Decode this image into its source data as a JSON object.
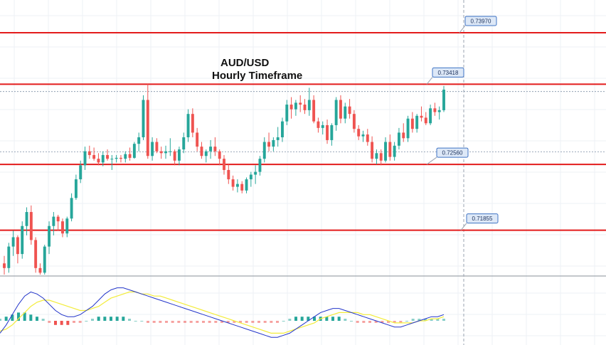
{
  "chart_data": {
    "type": "candlestick",
    "title": "AUD/USD",
    "subtitle": "Hourly Timeframe",
    "y_range": [
      0.7138,
      0.7432
    ],
    "levels": [
      {
        "label": "0.73970",
        "value": 0.7397
      },
      {
        "label": "0.73418",
        "value": 0.73418
      },
      {
        "label": "0.72560",
        "value": 0.7256
      },
      {
        "label": "0.71855",
        "value": 0.71855
      }
    ],
    "colors": {
      "bull": "#26a69a",
      "bear": "#ef5350",
      "level_line": "#e31b1b",
      "label_fill": "#dde8f7",
      "label_border": "#3f73c4",
      "macd_line": "#2234c9",
      "signal_line": "#f3ec3a",
      "histogram_positive": "#26a69a",
      "histogram_negative": "#ef5350"
    },
    "candles": [
      [
        0.715,
        0.7158,
        0.7138,
        0.7145
      ],
      [
        0.7145,
        0.7172,
        0.714,
        0.7168
      ],
      [
        0.7168,
        0.7185,
        0.7158,
        0.7178
      ],
      [
        0.7178,
        0.718,
        0.715,
        0.716
      ],
      [
        0.716,
        0.7195,
        0.7155,
        0.719
      ],
      [
        0.719,
        0.721,
        0.718,
        0.7205
      ],
      [
        0.7205,
        0.7212,
        0.717,
        0.7175
      ],
      [
        0.7175,
        0.7178,
        0.714,
        0.7145
      ],
      [
        0.7145,
        0.715,
        0.7138,
        0.714
      ],
      [
        0.714,
        0.717,
        0.7138,
        0.7168
      ],
      [
        0.7168,
        0.7195,
        0.716,
        0.719
      ],
      [
        0.719,
        0.7205,
        0.718,
        0.72
      ],
      [
        0.72,
        0.7202,
        0.7185,
        0.7195
      ],
      [
        0.7195,
        0.7198,
        0.7178,
        0.7182
      ],
      [
        0.7182,
        0.72,
        0.7178,
        0.7198
      ],
      [
        0.7198,
        0.7225,
        0.7195,
        0.722
      ],
      [
        0.722,
        0.7245,
        0.7218,
        0.724
      ],
      [
        0.724,
        0.726,
        0.7236,
        0.7255
      ],
      [
        0.7255,
        0.7275,
        0.725,
        0.727
      ],
      [
        0.727,
        0.7276,
        0.7262,
        0.7266
      ],
      [
        0.7266,
        0.7274,
        0.726,
        0.7262
      ],
      [
        0.7262,
        0.7268,
        0.7255,
        0.7258
      ],
      [
        0.7258,
        0.727,
        0.7254,
        0.7266
      ],
      [
        0.7266,
        0.7272,
        0.726,
        0.7262
      ],
      [
        0.7262,
        0.7266,
        0.725,
        0.7262
      ],
      [
        0.7262,
        0.7266,
        0.7258,
        0.7263
      ],
      [
        0.7263,
        0.7266,
        0.7258,
        0.7262
      ],
      [
        0.7262,
        0.727,
        0.7258,
        0.7267
      ],
      [
        0.7267,
        0.7274,
        0.726,
        0.7263
      ],
      [
        0.7263,
        0.728,
        0.7262,
        0.7278
      ],
      [
        0.7278,
        0.729,
        0.727,
        0.7285
      ],
      [
        0.7285,
        0.733,
        0.7282,
        0.7325
      ],
      [
        0.7325,
        0.7342,
        0.7262,
        0.7265
      ],
      [
        0.7265,
        0.7285,
        0.726,
        0.728
      ],
      [
        0.728,
        0.7284,
        0.7268,
        0.727
      ],
      [
        0.727,
        0.7275,
        0.7262,
        0.7268
      ],
      [
        0.7268,
        0.7276,
        0.7262,
        0.727
      ],
      [
        0.727,
        0.7284,
        0.7265,
        0.727
      ],
      [
        0.727,
        0.7272,
        0.7255,
        0.726
      ],
      [
        0.726,
        0.7275,
        0.7255,
        0.7272
      ],
      [
        0.7272,
        0.729,
        0.7268,
        0.7285
      ],
      [
        0.7285,
        0.7315,
        0.728,
        0.731
      ],
      [
        0.731,
        0.7316,
        0.7285,
        0.729
      ],
      [
        0.729,
        0.7295,
        0.727,
        0.7275
      ],
      [
        0.7275,
        0.728,
        0.7262,
        0.7265
      ],
      [
        0.7265,
        0.7272,
        0.7258,
        0.727
      ],
      [
        0.727,
        0.7282,
        0.7262,
        0.7275
      ],
      [
        0.7275,
        0.7285,
        0.7265,
        0.727
      ],
      [
        0.727,
        0.7272,
        0.7255,
        0.7262
      ],
      [
        0.7262,
        0.7266,
        0.7245,
        0.725
      ],
      [
        0.725,
        0.7256,
        0.7235,
        0.724
      ],
      [
        0.724,
        0.7244,
        0.7228,
        0.7232
      ],
      [
        0.7232,
        0.724,
        0.7226,
        0.7235
      ],
      [
        0.7235,
        0.7238,
        0.7225,
        0.7228
      ],
      [
        0.7228,
        0.7242,
        0.7225,
        0.724
      ],
      [
        0.724,
        0.7248,
        0.7232,
        0.7245
      ],
      [
        0.7245,
        0.7255,
        0.7235,
        0.7248
      ],
      [
        0.7248,
        0.7265,
        0.7244,
        0.7262
      ],
      [
        0.7262,
        0.7285,
        0.7258,
        0.728
      ],
      [
        0.728,
        0.729,
        0.727,
        0.7275
      ],
      [
        0.7275,
        0.7285,
        0.727,
        0.7282
      ],
      [
        0.7282,
        0.7296,
        0.7275,
        0.7285
      ],
      [
        0.7285,
        0.7306,
        0.728,
        0.7302
      ],
      [
        0.7302,
        0.7325,
        0.7298,
        0.732
      ],
      [
        0.732,
        0.7328,
        0.7305,
        0.7315
      ],
      [
        0.7315,
        0.7325,
        0.7308,
        0.7322
      ],
      [
        0.7322,
        0.733,
        0.7312,
        0.732
      ],
      [
        0.732,
        0.7326,
        0.731,
        0.7314
      ],
      [
        0.7314,
        0.7338,
        0.7308,
        0.7325
      ],
      [
        0.7325,
        0.733,
        0.73,
        0.7302
      ],
      [
        0.7302,
        0.7306,
        0.729,
        0.7295
      ],
      [
        0.7295,
        0.7302,
        0.7288,
        0.7298
      ],
      [
        0.7298,
        0.7304,
        0.7278,
        0.7282
      ],
      [
        0.7282,
        0.73,
        0.7276,
        0.7298
      ],
      [
        0.7298,
        0.7328,
        0.7292,
        0.7325
      ],
      [
        0.7325,
        0.733,
        0.73,
        0.7305
      ],
      [
        0.7305,
        0.7322,
        0.73,
        0.7318
      ],
      [
        0.7318,
        0.7326,
        0.7305,
        0.731
      ],
      [
        0.731,
        0.7314,
        0.729,
        0.7294
      ],
      [
        0.7294,
        0.7298,
        0.7282,
        0.7286
      ],
      [
        0.7286,
        0.7292,
        0.728,
        0.7288
      ],
      [
        0.7288,
        0.7294,
        0.7276,
        0.728
      ],
      [
        0.728,
        0.7286,
        0.7258,
        0.7262
      ],
      [
        0.7262,
        0.7272,
        0.7256,
        0.7268
      ],
      [
        0.7268,
        0.7272,
        0.7255,
        0.726
      ],
      [
        0.726,
        0.7285,
        0.7258,
        0.728
      ],
      [
        0.728,
        0.7288,
        0.726,
        0.7264
      ],
      [
        0.7264,
        0.728,
        0.726,
        0.7276
      ],
      [
        0.7276,
        0.7295,
        0.7272,
        0.729
      ],
      [
        0.729,
        0.73,
        0.728,
        0.7284
      ],
      [
        0.7284,
        0.7308,
        0.728,
        0.7305
      ],
      [
        0.7305,
        0.7312,
        0.729,
        0.7294
      ],
      [
        0.7294,
        0.731,
        0.729,
        0.7308
      ],
      [
        0.7308,
        0.7318,
        0.7302,
        0.7306
      ],
      [
        0.7306,
        0.7312,
        0.7298,
        0.73
      ],
      [
        0.73,
        0.732,
        0.7298,
        0.7316
      ],
      [
        0.7316,
        0.7322,
        0.7308,
        0.7312
      ],
      [
        0.7312,
        0.7318,
        0.7304,
        0.7314
      ],
      [
        0.7314,
        0.734,
        0.7312,
        0.7336
      ]
    ],
    "macd": {
      "macd_line": [
        -6,
        -2,
        3,
        8,
        12,
        14,
        13,
        11,
        8,
        5,
        3,
        2,
        2,
        3,
        5,
        7,
        10,
        13,
        15,
        16,
        16,
        15,
        14,
        13,
        12,
        11,
        10,
        9,
        8,
        7,
        6,
        5,
        4,
        3,
        2,
        1,
        0,
        -1,
        -2,
        -3,
        -4,
        -5,
        -6,
        -7,
        -8,
        -8,
        -7,
        -6,
        -4,
        -2,
        0,
        2,
        4,
        5,
        6,
        6,
        5,
        4,
        3,
        2,
        1,
        0,
        -1,
        -2,
        -3,
        -3,
        -2,
        -1,
        0,
        1,
        2,
        2,
        3
      ],
      "signal_line": [
        -5,
        -4,
        -2,
        1,
        4,
        7,
        9,
        10,
        10,
        9,
        8,
        7,
        6,
        5,
        5,
        6,
        7,
        9,
        11,
        12,
        13,
        14,
        14,
        13,
        13,
        12,
        12,
        11,
        10,
        9,
        8,
        7,
        6,
        5,
        4,
        3,
        2,
        1,
        0,
        -1,
        -2,
        -3,
        -4,
        -5,
        -6,
        -6,
        -6,
        -5,
        -4,
        -3,
        -2,
        -1,
        1,
        2,
        3,
        4,
        4,
        4,
        4,
        3,
        3,
        2,
        1,
        0,
        -1,
        -1,
        -1,
        -1,
        0,
        0,
        1,
        1,
        2
      ],
      "histogram": [
        1,
        2,
        3,
        4,
        4,
        3,
        2,
        1,
        -1,
        -2,
        -2,
        -2,
        -1,
        -1,
        0,
        1,
        2,
        2,
        2,
        2,
        2,
        1,
        0,
        0,
        -1,
        -1,
        -1,
        -1,
        -1,
        -1,
        -1,
        -1,
        -1,
        -1,
        -1,
        -1,
        -1,
        -1,
        -1,
        -1,
        -1,
        -1,
        -1,
        -1,
        -1,
        -1,
        0,
        1,
        2,
        2,
        2,
        2,
        2,
        2,
        2,
        2,
        1,
        0,
        -1,
        -1,
        -1,
        -1,
        -1,
        -1,
        -1,
        -1,
        0,
        1,
        1,
        1,
        1,
        1,
        1
      ]
    }
  }
}
